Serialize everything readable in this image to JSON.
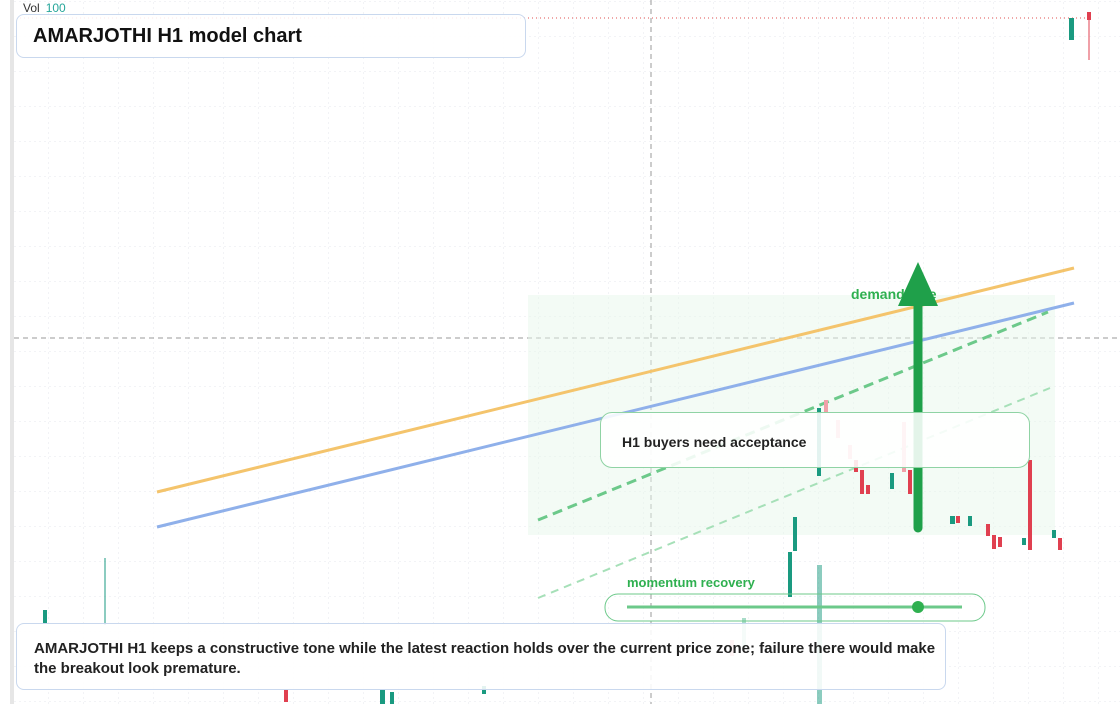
{
  "header": {
    "volume_label": "Vol",
    "volume_value": "100"
  },
  "title": "AMARJOTHI H1 model chart",
  "annotations": {
    "zone_label": "demand side",
    "callout": "H1 buyers need acceptance",
    "momentum_label": "momentum recovery"
  },
  "note": "AMARJOTHI H1 keeps a constructive tone while the latest reaction holds over the current price zone; failure there would make the breakout look premature."
}
